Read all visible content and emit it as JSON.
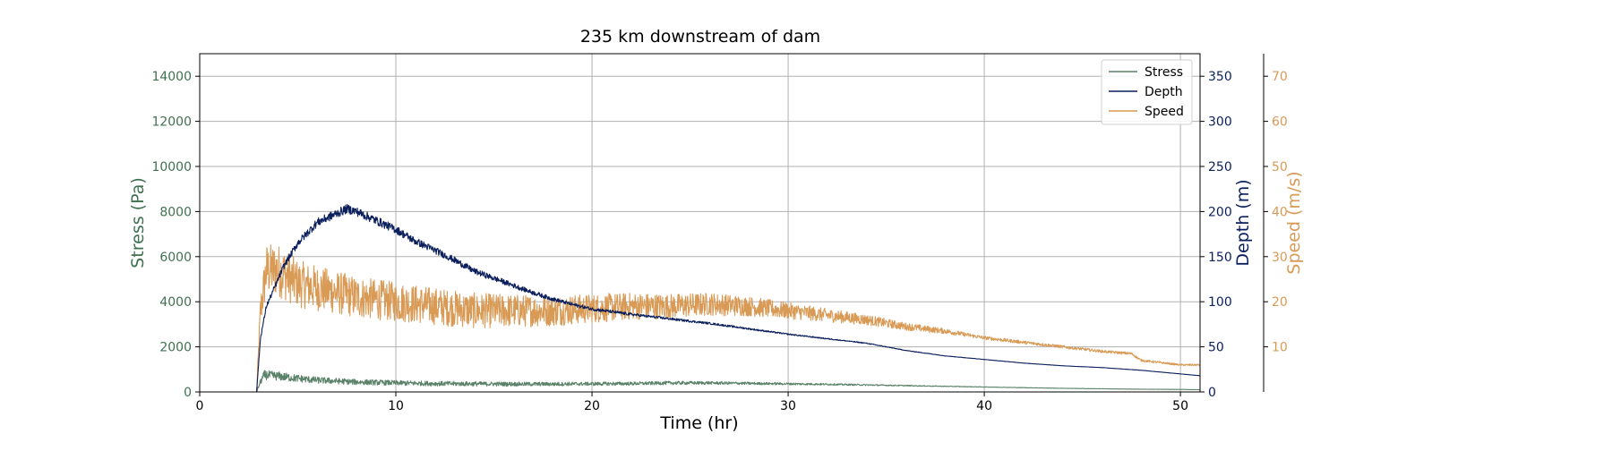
{
  "chart_data": {
    "type": "line",
    "title": "235 km downstream of dam",
    "xlabel": "Time (hr)",
    "xlim": [
      0,
      51
    ],
    "xticks": [
      0,
      10,
      20,
      30,
      40,
      50
    ],
    "grid": true,
    "legend_position": "top-right",
    "legend": [
      "Stress",
      "Depth",
      "Speed"
    ],
    "axes": [
      {
        "id": "stress",
        "label": "Stress (Pa)",
        "side": "left",
        "lim": [
          0,
          15000
        ],
        "ticks": [
          0,
          2000,
          4000,
          6000,
          8000,
          10000,
          12000,
          14000
        ],
        "color": "#3f7050"
      },
      {
        "id": "depth",
        "label": "Depth (m)",
        "side": "right",
        "lim": [
          0,
          375
        ],
        "ticks": [
          0,
          50,
          100,
          150,
          200,
          250,
          300,
          350
        ],
        "color": "#0a1f5c"
      },
      {
        "id": "speed",
        "label": "Speed (m/s)",
        "side": "right-outer",
        "lim": [
          0,
          75
        ],
        "ticks": [
          10,
          20,
          30,
          40,
          50,
          60,
          70
        ],
        "color": "#d89a55"
      }
    ],
    "series": [
      {
        "name": "Stress",
        "axis": "stress",
        "color": "#5a8268",
        "noise": 0.28,
        "points": [
          [
            0,
            0
          ],
          [
            2.9,
            0
          ],
          [
            3.1,
            450
          ],
          [
            3.3,
            750
          ],
          [
            4,
            700
          ],
          [
            5,
            600
          ],
          [
            6,
            520
          ],
          [
            7,
            480
          ],
          [
            8,
            440
          ],
          [
            9,
            420
          ],
          [
            10,
            400
          ],
          [
            12,
            370
          ],
          [
            14,
            360
          ],
          [
            16,
            350
          ],
          [
            18,
            350
          ],
          [
            20,
            360
          ],
          [
            22,
            370
          ],
          [
            24,
            400
          ],
          [
            26,
            400
          ],
          [
            28,
            380
          ],
          [
            30,
            360
          ],
          [
            32,
            340
          ],
          [
            34,
            310
          ],
          [
            36,
            280
          ],
          [
            38,
            250
          ],
          [
            40,
            220
          ],
          [
            42,
            190
          ],
          [
            44,
            160
          ],
          [
            46,
            140
          ],
          [
            48,
            120
          ],
          [
            50,
            110
          ],
          [
            51,
            100
          ]
        ]
      },
      {
        "name": "Depth",
        "axis": "depth",
        "color": "#0a1f5c",
        "noise": 0.025,
        "points": [
          [
            0,
            0
          ],
          [
            2.9,
            0
          ],
          [
            3.1,
            60
          ],
          [
            3.4,
            95
          ],
          [
            3.8,
            115
          ],
          [
            4.3,
            140
          ],
          [
            5,
            165
          ],
          [
            6,
            188
          ],
          [
            7,
            198
          ],
          [
            7.5,
            203
          ],
          [
            8,
            200
          ],
          [
            9,
            190
          ],
          [
            10,
            180
          ],
          [
            11,
            167
          ],
          [
            12,
            157
          ],
          [
            13,
            146
          ],
          [
            14,
            134
          ],
          [
            15,
            126
          ],
          [
            16,
            118
          ],
          [
            17,
            110
          ],
          [
            18,
            103
          ],
          [
            19,
            97
          ],
          [
            20,
            92
          ],
          [
            22,
            86
          ],
          [
            24,
            81
          ],
          [
            26,
            76
          ],
          [
            28,
            70
          ],
          [
            30,
            64
          ],
          [
            32,
            59
          ],
          [
            34,
            54
          ],
          [
            36,
            46
          ],
          [
            38,
            40
          ],
          [
            40,
            36
          ],
          [
            42,
            32
          ],
          [
            44,
            29
          ],
          [
            46,
            27
          ],
          [
            48,
            24
          ],
          [
            50,
            20
          ],
          [
            51,
            18
          ]
        ]
      },
      {
        "name": "Speed",
        "axis": "speed",
        "color": "#d89a55",
        "noise": 0.22,
        "points": [
          [
            0,
            0
          ],
          [
            2.9,
            0
          ],
          [
            3.1,
            18
          ],
          [
            3.4,
            27
          ],
          [
            4,
            27
          ],
          [
            5,
            24
          ],
          [
            6,
            23
          ],
          [
            8,
            21
          ],
          [
            10,
            20
          ],
          [
            12,
            19
          ],
          [
            14,
            18
          ],
          [
            16,
            18
          ],
          [
            18,
            18
          ],
          [
            20,
            18.5
          ],
          [
            22,
            19
          ],
          [
            24,
            19
          ],
          [
            26,
            19.5
          ],
          [
            28,
            19
          ],
          [
            30,
            18
          ],
          [
            32,
            17
          ],
          [
            34,
            16
          ],
          [
            36,
            14.5
          ],
          [
            38,
            13.5
          ],
          [
            40,
            12
          ],
          [
            42,
            11
          ],
          [
            44,
            10
          ],
          [
            46,
            9
          ],
          [
            47.5,
            8.5
          ],
          [
            48,
            7
          ],
          [
            50,
            6
          ],
          [
            51,
            6
          ]
        ]
      }
    ]
  }
}
